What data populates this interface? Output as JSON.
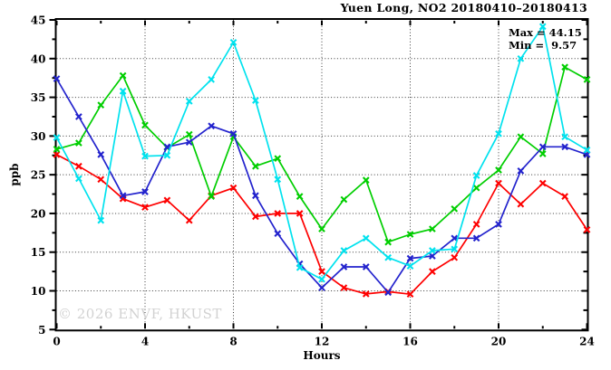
{
  "chart": {
    "title": "Yuen Long, NO2 20180410–20180413",
    "max_label": "Max = 44.15",
    "min_label": "Min =  9.57",
    "watermark": "© 2026 ENVF, HKUST"
  },
  "chart_data": {
    "type": "line",
    "title": "Yuen Long, NO2 20180410-20180413",
    "xlabel": "Hours",
    "ylabel": "ppb",
    "xlim": [
      0,
      24
    ],
    "ylim": [
      5,
      45
    ],
    "x_ticks": [
      0,
      4,
      8,
      12,
      16,
      20,
      24
    ],
    "x_minor_step": 2,
    "y_ticks": [
      5,
      10,
      15,
      20,
      25,
      30,
      35,
      40,
      45
    ],
    "y_minor_step": 2.5,
    "grid": "dotted",
    "grid_x": [
      4,
      8,
      12,
      16,
      20
    ],
    "grid_y": [
      10,
      15,
      20,
      25,
      30,
      35,
      40
    ],
    "legend_position": "none",
    "annotations": {
      "max": 44.15,
      "min": 9.57
    },
    "marker": "x",
    "x": [
      0,
      1,
      2,
      3,
      4,
      5,
      6,
      7,
      8,
      9,
      10,
      11,
      12,
      13,
      14,
      15,
      16,
      17,
      18,
      19,
      20,
      21,
      22,
      23,
      24
    ],
    "series": [
      {
        "name": "day-1-red",
        "color": "#fe0000",
        "values": [
          27.6,
          26.1,
          24.4,
          21.9,
          20.8,
          21.7,
          19.1,
          22.3,
          23.3,
          19.6,
          20.0,
          20.0,
          12.5,
          10.4,
          9.6,
          9.9,
          9.57,
          12.5,
          14.3,
          18.6,
          23.9,
          21.2,
          23.9,
          22.2,
          17.9
        ]
      },
      {
        "name": "day-2-green",
        "color": "#00ce00",
        "values": [
          28.3,
          29.1,
          34.0,
          37.8,
          31.4,
          28.5,
          30.2,
          22.2,
          29.9,
          26.1,
          27.1,
          22.2,
          18.0,
          21.8,
          24.3,
          16.3,
          17.3,
          18.0,
          20.6,
          23.3,
          25.6,
          29.9,
          27.7,
          38.9,
          37.3
        ]
      },
      {
        "name": "day-3-blue",
        "color": "#2323cd",
        "values": [
          37.4,
          32.5,
          27.6,
          22.3,
          22.8,
          28.6,
          29.2,
          31.3,
          30.3,
          22.3,
          17.4,
          13.5,
          10.4,
          13.1,
          13.1,
          9.8,
          14.2,
          14.5,
          16.8,
          16.8,
          18.6,
          25.5,
          28.6,
          28.6,
          27.6
        ]
      },
      {
        "name": "day-4-cyan",
        "color": "#00e2ee",
        "values": [
          29.8,
          24.5,
          19.1,
          35.8,
          27.4,
          27.5,
          34.5,
          37.3,
          42.1,
          34.6,
          24.4,
          13.0,
          11.5,
          15.2,
          16.8,
          14.3,
          13.2,
          15.2,
          15.4,
          24.9,
          30.3,
          40.0,
          44.15,
          29.9,
          28.2
        ]
      }
    ]
  }
}
